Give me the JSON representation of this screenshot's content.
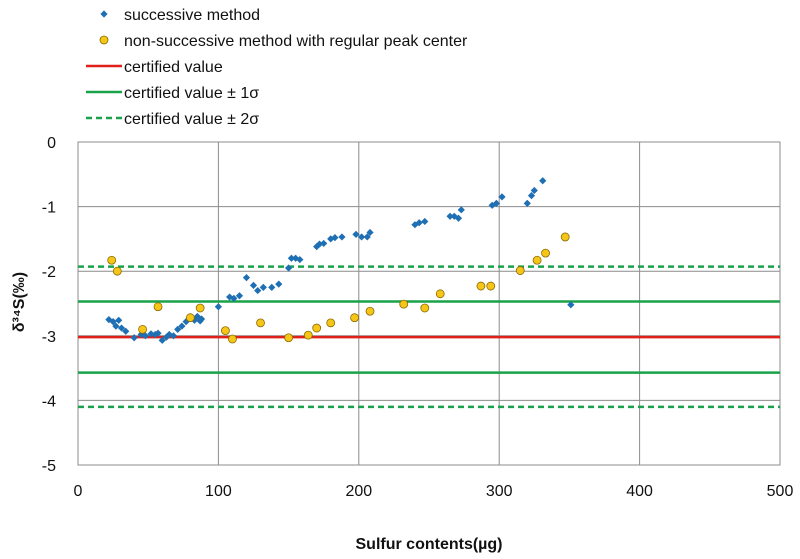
{
  "chart_data": {
    "type": "scatter",
    "title": "",
    "xlabel": "Sulfur contents(µg)",
    "ylabel": "δ³⁴S(‰)",
    "xlim": [
      0,
      500
    ],
    "ylim": [
      -5,
      0
    ],
    "x_ticks": [
      0,
      100,
      200,
      300,
      400,
      500
    ],
    "y_ticks": [
      0,
      -1,
      -2,
      -3,
      -4,
      -5
    ],
    "grid": "on",
    "legend_position": "top-left",
    "series": [
      {
        "name": "successive method",
        "marker": "diamond",
        "color": "#1f6fb4",
        "points": [
          [
            22,
            -2.75
          ],
          [
            25,
            -2.78
          ],
          [
            27,
            -2.85
          ],
          [
            29,
            -2.76
          ],
          [
            31,
            -2.88
          ],
          [
            34,
            -2.93
          ],
          [
            40,
            -3.03
          ],
          [
            45,
            -2.98
          ],
          [
            48,
            -3.0
          ],
          [
            52,
            -2.97
          ],
          [
            55,
            -2.98
          ],
          [
            57,
            -2.96
          ],
          [
            60,
            -3.07
          ],
          [
            63,
            -3.02
          ],
          [
            65,
            -2.98
          ],
          [
            68,
            -3.0
          ],
          [
            71,
            -2.9
          ],
          [
            74,
            -2.85
          ],
          [
            77,
            -2.78
          ],
          [
            80,
            -2.72
          ],
          [
            83,
            -2.76
          ],
          [
            85,
            -2.7
          ],
          [
            87,
            -2.77
          ],
          [
            88,
            -2.74
          ],
          [
            100,
            -2.55
          ],
          [
            108,
            -2.4
          ],
          [
            111,
            -2.42
          ],
          [
            115,
            -2.38
          ],
          [
            120,
            -2.1
          ],
          [
            125,
            -2.22
          ],
          [
            128,
            -2.3
          ],
          [
            132,
            -2.25
          ],
          [
            138,
            -2.25
          ],
          [
            143,
            -2.2
          ],
          [
            150,
            -1.95
          ],
          [
            152,
            -1.8
          ],
          [
            155,
            -1.8
          ],
          [
            158,
            -1.82
          ],
          [
            170,
            -1.62
          ],
          [
            172,
            -1.58
          ],
          [
            175,
            -1.57
          ],
          [
            180,
            -1.5
          ],
          [
            183,
            -1.48
          ],
          [
            188,
            -1.47
          ],
          [
            198,
            -1.43
          ],
          [
            202,
            -1.47
          ],
          [
            206,
            -1.47
          ],
          [
            208,
            -1.4
          ],
          [
            240,
            -1.28
          ],
          [
            243,
            -1.25
          ],
          [
            247,
            -1.23
          ],
          [
            265,
            -1.15
          ],
          [
            268,
            -1.15
          ],
          [
            271,
            -1.18
          ],
          [
            273,
            -1.05
          ],
          [
            295,
            -0.98
          ],
          [
            298,
            -0.95
          ],
          [
            302,
            -0.85
          ],
          [
            320,
            -0.95
          ],
          [
            323,
            -0.83
          ],
          [
            325,
            -0.75
          ],
          [
            331,
            -0.6
          ],
          [
            351,
            -2.52
          ]
        ]
      },
      {
        "name": "non-successive method with regular peak center",
        "marker": "circle",
        "color": "#f5c518",
        "points": [
          [
            24,
            -1.83
          ],
          [
            28,
            -2.0
          ],
          [
            46,
            -2.9
          ],
          [
            57,
            -2.55
          ],
          [
            80,
            -2.72
          ],
          [
            87,
            -2.57
          ],
          [
            105,
            -2.92
          ],
          [
            110,
            -3.05
          ],
          [
            130,
            -2.8
          ],
          [
            150,
            -3.03
          ],
          [
            164,
            -2.99
          ],
          [
            170,
            -2.88
          ],
          [
            180,
            -2.8
          ],
          [
            197,
            -2.72
          ],
          [
            208,
            -2.62
          ],
          [
            232,
            -2.51
          ],
          [
            247,
            -2.57
          ],
          [
            258,
            -2.35
          ],
          [
            287,
            -2.23
          ],
          [
            294,
            -2.23
          ],
          [
            315,
            -1.99
          ],
          [
            327,
            -1.83
          ],
          [
            333,
            -1.72
          ],
          [
            347,
            -1.47
          ]
        ]
      }
    ],
    "reference_lines": [
      {
        "name": "certified value",
        "color": "#e0201a",
        "style": "solid",
        "values": [
          -3.02
        ]
      },
      {
        "name": "certified value ± 1σ",
        "color": "#1aa24a",
        "style": "solid",
        "values": [
          -2.47,
          -3.57
        ]
      },
      {
        "name": "certified value ± 2σ",
        "color": "#1aa24a",
        "style": "dashed",
        "values": [
          -1.93,
          -4.1
        ]
      }
    ]
  }
}
